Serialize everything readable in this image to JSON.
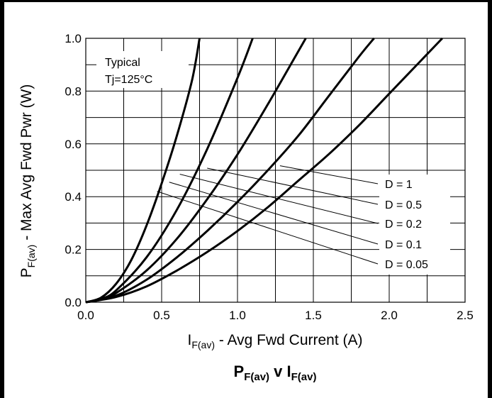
{
  "chart_data": {
    "type": "line",
    "title": {
      "main1": "P",
      "sub1": "F(av)",
      "main2": " v ",
      "main3": "I",
      "sub3": "F(av)"
    },
    "xlabel": {
      "main": "I",
      "sub": "F(av)",
      "rest": " - Avg Fwd Current (A)"
    },
    "ylabel": {
      "main": "P",
      "sub": "F(av)",
      "rest": " - Max Avg Fwd Pwr (W)"
    },
    "xlim": [
      0,
      2.5
    ],
    "ylim": [
      0,
      1.0
    ],
    "x_ticks": [
      "0.0",
      "0.5",
      "1.0",
      "1.5",
      "2.0",
      "2.5"
    ],
    "y_ticks": [
      "0.0",
      "0.2",
      "0.4",
      "0.6",
      "0.8",
      "1.0"
    ],
    "grid": true,
    "annotation": [
      "Typical",
      "Tj=125°C"
    ],
    "series": [
      {
        "name": "D = 0.05",
        "points": [
          [
            0,
            0
          ],
          [
            0.1,
            0.017
          ],
          [
            0.2,
            0.07
          ],
          [
            0.3,
            0.16
          ],
          [
            0.4,
            0.29
          ],
          [
            0.5,
            0.45
          ],
          [
            0.6,
            0.63
          ],
          [
            0.7,
            0.84
          ],
          [
            0.75,
            1.0
          ]
        ]
      },
      {
        "name": "D = 0.1",
        "points": [
          [
            0,
            0
          ],
          [
            0.1,
            0.012
          ],
          [
            0.2,
            0.045
          ],
          [
            0.4,
            0.17
          ],
          [
            0.6,
            0.35
          ],
          [
            0.8,
            0.58
          ],
          [
            1.0,
            0.85
          ],
          [
            1.1,
            1.0
          ]
        ]
      },
      {
        "name": "D = 0.2",
        "points": [
          [
            0,
            0
          ],
          [
            0.1,
            0.01
          ],
          [
            0.2,
            0.035
          ],
          [
            0.4,
            0.12
          ],
          [
            0.6,
            0.24
          ],
          [
            0.8,
            0.39
          ],
          [
            1.0,
            0.56
          ],
          [
            1.2,
            0.75
          ],
          [
            1.4,
            0.95
          ],
          [
            1.45,
            1.0
          ]
        ]
      },
      {
        "name": "D = 0.5",
        "points": [
          [
            0,
            0
          ],
          [
            0.2,
            0.025
          ],
          [
            0.4,
            0.085
          ],
          [
            0.6,
            0.17
          ],
          [
            0.8,
            0.27
          ],
          [
            1.0,
            0.38
          ],
          [
            1.2,
            0.5
          ],
          [
            1.4,
            0.63
          ],
          [
            1.6,
            0.78
          ],
          [
            1.8,
            0.93
          ],
          [
            1.9,
            1.0
          ]
        ]
      },
      {
        "name": "D = 1",
        "points": [
          [
            0,
            0
          ],
          [
            0.2,
            0.02
          ],
          [
            0.4,
            0.06
          ],
          [
            0.6,
            0.12
          ],
          [
            0.8,
            0.19
          ],
          [
            1.0,
            0.27
          ],
          [
            1.2,
            0.36
          ],
          [
            1.4,
            0.46
          ],
          [
            1.6,
            0.56
          ],
          [
            1.8,
            0.67
          ],
          [
            2.0,
            0.79
          ],
          [
            2.2,
            0.91
          ],
          [
            2.35,
            1.0
          ]
        ]
      }
    ],
    "legend_labels": [
      "D = 1",
      "D = 0.5",
      "D = 0.2",
      "D = 0.1",
      "D = 0.05"
    ],
    "leader_starts": [
      [
        1.28,
        0.517
      ],
      [
        0.8,
        0.508
      ],
      [
        0.62,
        0.485
      ],
      [
        0.55,
        0.455
      ],
      [
        0.47,
        0.42
      ]
    ]
  }
}
